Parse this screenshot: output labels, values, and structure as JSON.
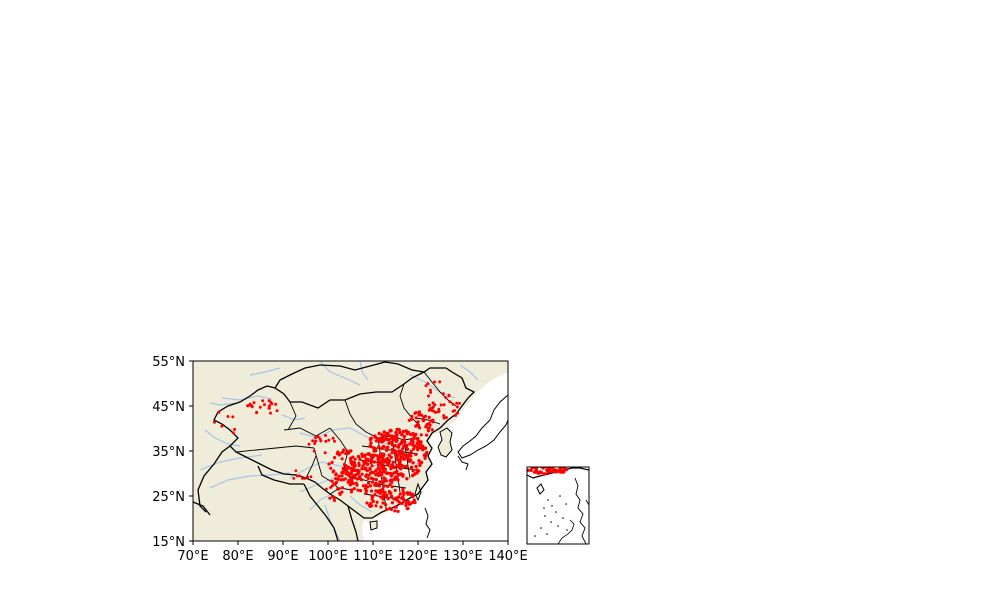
{
  "map": {
    "x_ticks": [
      "70°E",
      "80°E",
      "90°E",
      "100°E",
      "110°E",
      "120°E",
      "130°E",
      "140°E"
    ],
    "y_ticks": [
      "55°N",
      "45°N",
      "35°N",
      "25°N",
      "15°N"
    ],
    "extent": {
      "lon": [
        70,
        140
      ],
      "lat": [
        15,
        55
      ]
    },
    "colors": {
      "land": "#efedda",
      "ocean": "#ffffff",
      "rivers": "#a8c3e8",
      "borders": "#000000",
      "stations": "#ff0000"
    },
    "layers": [
      "land",
      "rivers",
      "coastline",
      "country-borders",
      "province-borders",
      "station-points"
    ],
    "inset": {
      "description_visible": false
    }
  }
}
